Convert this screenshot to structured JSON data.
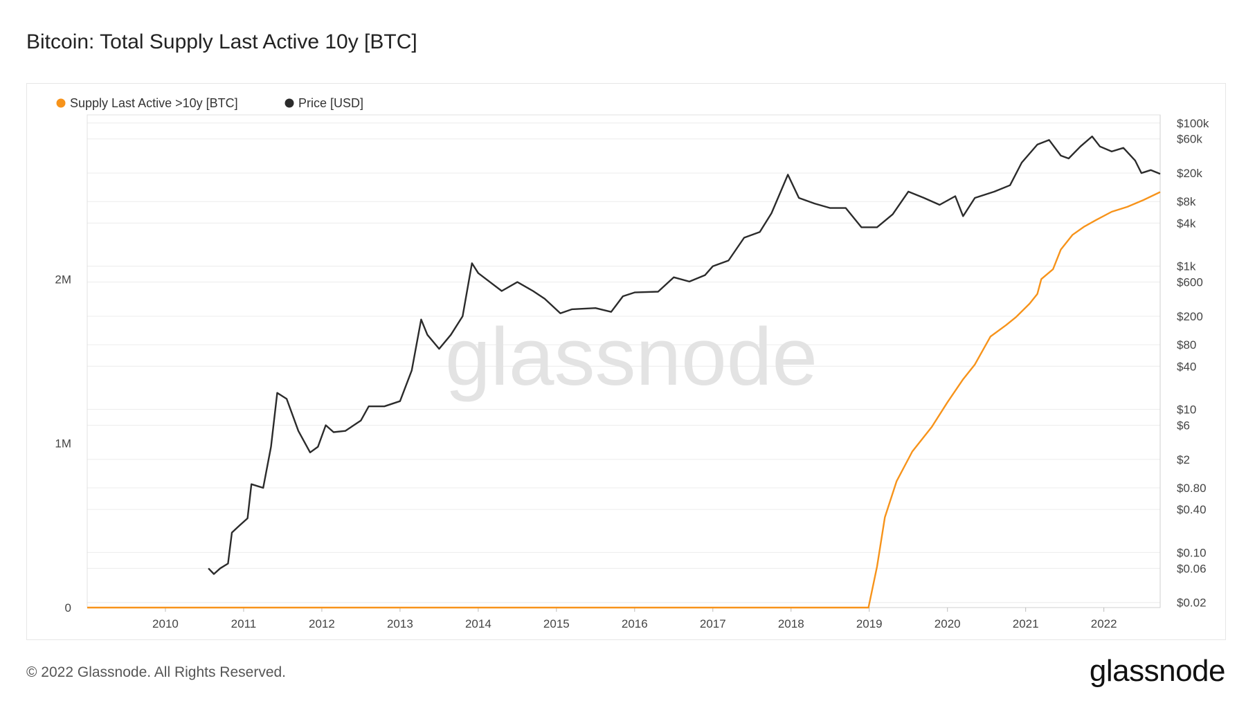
{
  "page": {
    "title": "Bitcoin: Total Supply Last Active 10y [BTC]",
    "copyright": "© 2022 Glassnode. All Rights Reserved.",
    "brand": "glassnode",
    "watermark": "glassnode"
  },
  "chart_data": {
    "type": "line",
    "title": "Bitcoin: Total Supply Last Active 10y [BTC]",
    "legend_placement": "top-left",
    "grid": true,
    "colors": {
      "supply": "#f7931a",
      "price": "#2b2b2b"
    },
    "x_axis": {
      "range": [
        2009.0,
        2022.72
      ],
      "ticks": [
        "2010",
        "2011",
        "2012",
        "2013",
        "2014",
        "2015",
        "2016",
        "2017",
        "2018",
        "2019",
        "2020",
        "2021",
        "2022"
      ]
    },
    "y_left": {
      "range": [
        0,
        3000000
      ],
      "ticks": [
        {
          "value": 0,
          "label": "0"
        },
        {
          "value": 1000000,
          "label": "1M"
        },
        {
          "value": 2000000,
          "label": "2M"
        }
      ]
    },
    "y_right": {
      "scale": "log",
      "range": [
        0.017,
        130000
      ],
      "ticks": [
        {
          "value": 100000,
          "label": "$100k"
        },
        {
          "value": 60000,
          "label": "$60k"
        },
        {
          "value": 20000,
          "label": "$20k"
        },
        {
          "value": 8000,
          "label": "$8k"
        },
        {
          "value": 4000,
          "label": "$4k"
        },
        {
          "value": 1000,
          "label": "$1k"
        },
        {
          "value": 600,
          "label": "$600"
        },
        {
          "value": 200,
          "label": "$200"
        },
        {
          "value": 80,
          "label": "$80"
        },
        {
          "value": 40,
          "label": "$40"
        },
        {
          "value": 10,
          "label": "$10"
        },
        {
          "value": 6,
          "label": "$6"
        },
        {
          "value": 2,
          "label": "$2"
        },
        {
          "value": 0.8,
          "label": "$0.80"
        },
        {
          "value": 0.4,
          "label": "$0.40"
        },
        {
          "value": 0.1,
          "label": "$0.10"
        },
        {
          "value": 0.06,
          "label": "$0.06"
        },
        {
          "value": 0.02,
          "label": "$0.02"
        }
      ]
    },
    "series": [
      {
        "name": "Supply Last Active >10y [BTC]",
        "axis": "left",
        "points": [
          [
            2009.0,
            0
          ],
          [
            2018.99,
            0
          ],
          [
            2019.1,
            250000
          ],
          [
            2019.2,
            550000
          ],
          [
            2019.35,
            770000
          ],
          [
            2019.55,
            950000
          ],
          [
            2019.8,
            1100000
          ],
          [
            2020.0,
            1250000
          ],
          [
            2020.2,
            1390000
          ],
          [
            2020.35,
            1480000
          ],
          [
            2020.55,
            1650000
          ],
          [
            2020.75,
            1720000
          ],
          [
            2020.88,
            1770000
          ],
          [
            2021.05,
            1850000
          ],
          [
            2021.15,
            1910000
          ],
          [
            2021.2,
            2000000
          ],
          [
            2021.35,
            2060000
          ],
          [
            2021.45,
            2180000
          ],
          [
            2021.6,
            2270000
          ],
          [
            2021.75,
            2320000
          ],
          [
            2021.9,
            2360000
          ],
          [
            2022.1,
            2410000
          ],
          [
            2022.3,
            2440000
          ],
          [
            2022.5,
            2480000
          ],
          [
            2022.72,
            2530000
          ]
        ]
      },
      {
        "name": "Price [USD]",
        "axis": "right",
        "points": [
          [
            2010.55,
            0.06
          ],
          [
            2010.62,
            0.05
          ],
          [
            2010.7,
            0.06
          ],
          [
            2010.8,
            0.07
          ],
          [
            2010.85,
            0.19
          ],
          [
            2010.95,
            0.24
          ],
          [
            2011.05,
            0.3
          ],
          [
            2011.1,
            0.9
          ],
          [
            2011.25,
            0.8
          ],
          [
            2011.35,
            3
          ],
          [
            2011.43,
            17
          ],
          [
            2011.55,
            14
          ],
          [
            2011.7,
            5
          ],
          [
            2011.85,
            2.5
          ],
          [
            2011.95,
            3
          ],
          [
            2012.05,
            6
          ],
          [
            2012.15,
            4.8
          ],
          [
            2012.3,
            5
          ],
          [
            2012.5,
            7
          ],
          [
            2012.6,
            11
          ],
          [
            2012.8,
            11
          ],
          [
            2013.0,
            13
          ],
          [
            2013.15,
            35
          ],
          [
            2013.27,
            180
          ],
          [
            2013.35,
            110
          ],
          [
            2013.5,
            70
          ],
          [
            2013.65,
            110
          ],
          [
            2013.8,
            200
          ],
          [
            2013.92,
            1100
          ],
          [
            2014.0,
            800
          ],
          [
            2014.15,
            600
          ],
          [
            2014.3,
            450
          ],
          [
            2014.5,
            600
          ],
          [
            2014.7,
            450
          ],
          [
            2014.85,
            350
          ],
          [
            2015.05,
            220
          ],
          [
            2015.2,
            250
          ],
          [
            2015.5,
            260
          ],
          [
            2015.7,
            230
          ],
          [
            2015.85,
            380
          ],
          [
            2016.0,
            430
          ],
          [
            2016.3,
            440
          ],
          [
            2016.5,
            700
          ],
          [
            2016.7,
            610
          ],
          [
            2016.9,
            750
          ],
          [
            2017.0,
            1000
          ],
          [
            2017.2,
            1200
          ],
          [
            2017.4,
            2500
          ],
          [
            2017.6,
            3000
          ],
          [
            2017.75,
            5500
          ],
          [
            2017.96,
            19000
          ],
          [
            2018.1,
            9000
          ],
          [
            2018.3,
            7500
          ],
          [
            2018.5,
            6500
          ],
          [
            2018.7,
            6500
          ],
          [
            2018.9,
            3500
          ],
          [
            2019.1,
            3500
          ],
          [
            2019.3,
            5300
          ],
          [
            2019.5,
            11000
          ],
          [
            2019.7,
            9000
          ],
          [
            2019.9,
            7200
          ],
          [
            2020.1,
            9500
          ],
          [
            2020.2,
            5000
          ],
          [
            2020.35,
            9000
          ],
          [
            2020.6,
            11000
          ],
          [
            2020.8,
            13500
          ],
          [
            2020.95,
            28000
          ],
          [
            2021.15,
            50000
          ],
          [
            2021.3,
            58000
          ],
          [
            2021.45,
            35000
          ],
          [
            2021.55,
            32000
          ],
          [
            2021.7,
            47000
          ],
          [
            2021.85,
            65000
          ],
          [
            2021.95,
            47000
          ],
          [
            2022.1,
            40000
          ],
          [
            2022.25,
            45000
          ],
          [
            2022.4,
            30000
          ],
          [
            2022.48,
            20000
          ],
          [
            2022.6,
            22000
          ],
          [
            2022.72,
            19500
          ]
        ]
      }
    ]
  }
}
